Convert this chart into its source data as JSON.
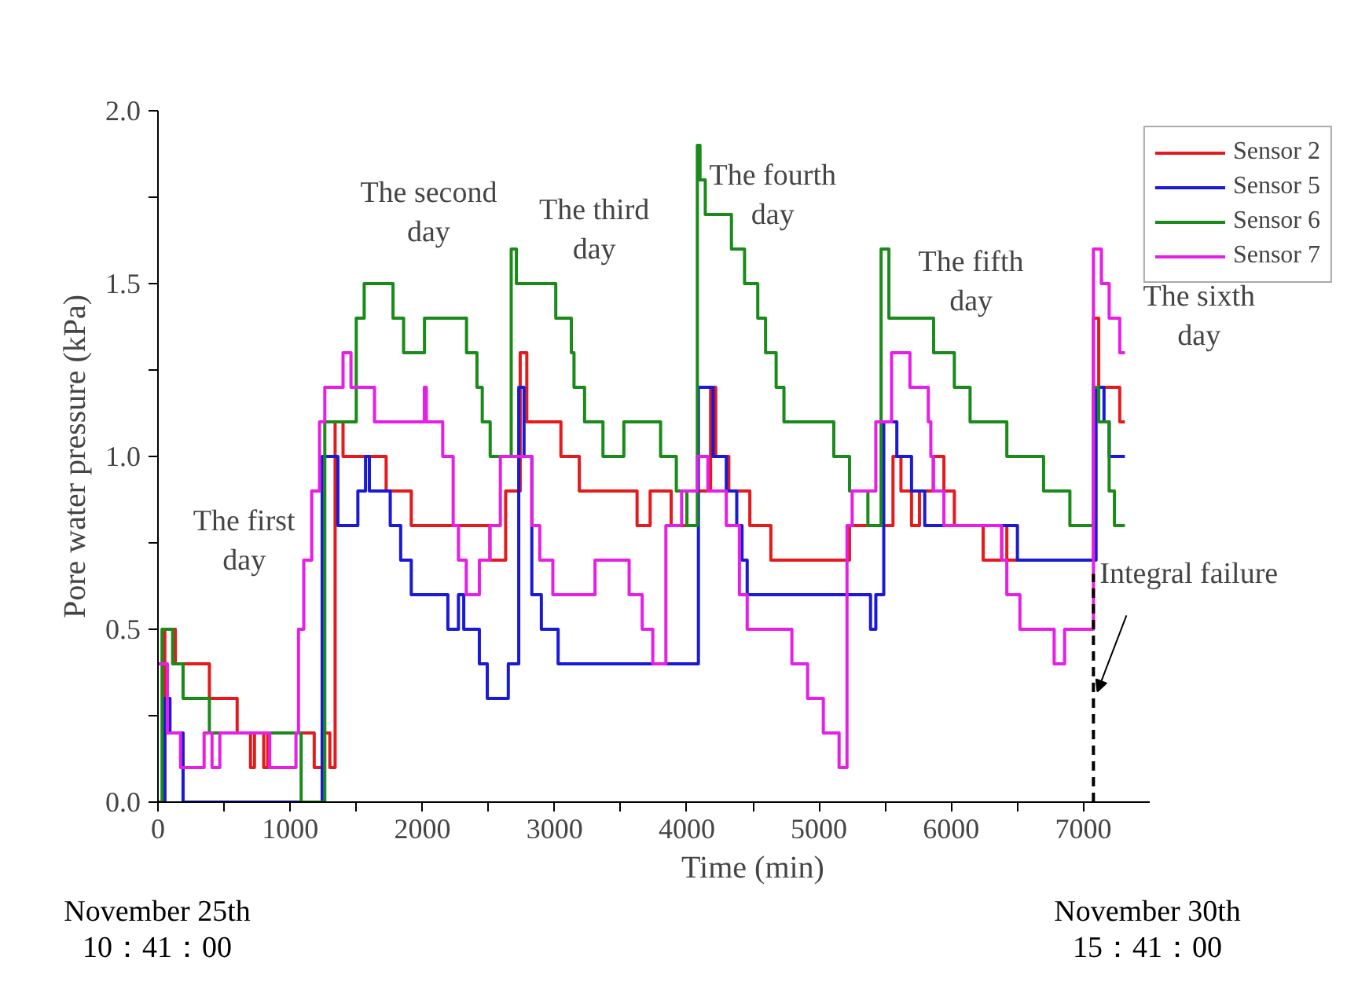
{
  "chart_data": {
    "type": "step",
    "xlabel": "Time (min)",
    "ylabel": "Pore water pressure (kPa)",
    "xlim": [
      0,
      7500
    ],
    "ylim": [
      0,
      2.0
    ],
    "xticks": [
      0,
      {
        "value": 500,
        "label": null
      },
      1000,
      {
        "value": 1500,
        "label": null
      },
      2000,
      {
        "value": 2500,
        "label": null
      },
      3000,
      {
        "value": 3500,
        "label": null
      },
      4000,
      {
        "value": 4500,
        "label": null
      },
      5000,
      {
        "value": 5500,
        "label": null
      },
      6000,
      {
        "value": 6500,
        "label": null
      },
      7000
    ],
    "yticks": [
      {
        "value": 0,
        "label": "0.0"
      },
      {
        "value": 0.25,
        "label": null
      },
      {
        "value": 0.5,
        "label": "0.5"
      },
      {
        "value": 0.75,
        "label": null
      },
      {
        "value": 1.0,
        "label": "1.0"
      },
      {
        "value": 1.25,
        "label": null
      },
      {
        "value": 1.5,
        "label": "1.5"
      },
      {
        "value": 1.75,
        "label": null
      },
      {
        "value": 2.0,
        "label": "2.0"
      }
    ],
    "grid": false,
    "legend": "top right",
    "series": [
      {
        "name": "Sensor 2",
        "color": "#e41a1c",
        "x": [
          0,
          52,
          131,
          389,
          599,
          700,
          730,
          800,
          830,
          1182,
          1242,
          1300,
          1340,
          1400,
          1726,
          1916,
          2511,
          2630,
          2740,
          2790,
          3048,
          3187,
          3624,
          3723,
          3882,
          4001,
          4180,
          4219,
          4318,
          4477,
          4636,
          5231,
          5560,
          5620,
          5700,
          5760,
          5865,
          5945,
          6024,
          6242,
          6382,
          6421,
          7076,
          7116,
          7275,
          7314
        ],
        "values": [
          0,
          0.5,
          0.4,
          0.3,
          0.2,
          0.1,
          0.2,
          0.1,
          0.2,
          0.1,
          0.2,
          0.1,
          1.1,
          1.0,
          0.9,
          0.8,
          0.7,
          0.9,
          1.3,
          1.1,
          1.0,
          0.9,
          0.8,
          0.9,
          0.8,
          0.9,
          1.2,
          1.0,
          0.9,
          0.8,
          0.7,
          0.8,
          1.0,
          0.9,
          0.8,
          0.9,
          1.0,
          0.9,
          0.8,
          0.7,
          0.8,
          0.7,
          1.4,
          1.2,
          1.1,
          1.1
        ]
      },
      {
        "name": "Sensor 5",
        "color": "#1a1ad6",
        "x": [
          0,
          52,
          91,
          190,
          1242,
          1361,
          1512,
          1570,
          1599,
          1757,
          1836,
          1916,
          2193,
          2273,
          2313,
          2431,
          2491,
          2650,
          2729,
          2769,
          2828,
          2900,
          3027,
          4088,
          4199,
          4299,
          4378,
          4418,
          4457,
          5390,
          5430,
          5490,
          5589,
          5700,
          5800,
          6501,
          7096,
          7156,
          7195,
          7314
        ],
        "values": [
          0,
          0.3,
          0.2,
          0,
          1.0,
          0.8,
          0.9,
          1.0,
          0.9,
          0.8,
          0.7,
          0.6,
          0.5,
          0.6,
          0.5,
          0.4,
          0.3,
          0.4,
          1.2,
          1.0,
          0.6,
          0.5,
          0.4,
          1.2,
          1.0,
          0.9,
          0.8,
          0.7,
          0.6,
          0.5,
          0.6,
          1.1,
          1.0,
          0.9,
          0.8,
          0.7,
          1.2,
          1.1,
          1.0,
          1.0
        ]
      },
      {
        "name": "Sensor 6",
        "color": "#1a8a1a",
        "x": [
          0,
          31,
          111,
          190,
          389,
          1083,
          1262,
          1500,
          1560,
          1778,
          1858,
          2016,
          2334,
          2413,
          2453,
          2513,
          2672,
          2711,
          3009,
          3127,
          3147,
          3227,
          3366,
          3524,
          3802,
          3921,
          4001,
          4080,
          4100,
          4140,
          4338,
          4437,
          4537,
          4596,
          4676,
          4735,
          5112,
          5231,
          5370,
          5470,
          5529,
          5867,
          6024,
          6143,
          6421,
          6699,
          6898,
          7076,
          7116,
          7195,
          7235,
          7314
        ],
        "values": [
          0,
          0.5,
          0.4,
          0.3,
          0.2,
          0,
          1.1,
          1.4,
          1.5,
          1.4,
          1.3,
          1.4,
          1.3,
          1.2,
          1.1,
          1.0,
          1.6,
          1.5,
          1.4,
          1.3,
          1.2,
          1.1,
          1.0,
          1.1,
          1.0,
          0.9,
          0.8,
          1.9,
          1.8,
          1.7,
          1.6,
          1.5,
          1.4,
          1.3,
          1.2,
          1.1,
          1.0,
          0.9,
          0.8,
          1.6,
          1.4,
          1.3,
          1.2,
          1.1,
          1.0,
          0.9,
          0.8,
          1.2,
          1.1,
          0.9,
          0.8,
          0.8
        ]
      },
      {
        "name": "Sensor 7",
        "color": "#e61ee6",
        "x": [
          0,
          71,
          171,
          349,
          409,
          468,
          845,
          1044,
          1063,
          1103,
          1163,
          1222,
          1262,
          1400,
          1460,
          1638,
          2015,
          2030,
          2154,
          2233,
          2273,
          2332,
          2431,
          2511,
          2590,
          2828,
          2888,
          2987,
          3306,
          3564,
          3663,
          3743,
          3842,
          3961,
          4080,
          4160,
          4299,
          4398,
          4457,
          4795,
          4914,
          5033,
          5152,
          5212,
          5251,
          5430,
          5549,
          5688,
          5827,
          5846,
          5865,
          5945,
          6382,
          6421,
          6520,
          6779,
          6858,
          7076,
          7136,
          7195,
          7275,
          7314
        ],
        "values": [
          0.4,
          0.2,
          0.1,
          0.2,
          0.1,
          0.2,
          0.1,
          0.2,
          0.5,
          0.7,
          0.9,
          1.1,
          1.2,
          1.3,
          1.2,
          1.1,
          1.2,
          1.1,
          1.0,
          0.8,
          0.7,
          0.6,
          0.7,
          0.8,
          1.0,
          0.8,
          0.7,
          0.6,
          0.7,
          0.6,
          0.5,
          0.4,
          0.8,
          0.9,
          1.0,
          0.9,
          0.8,
          0.6,
          0.5,
          0.4,
          0.3,
          0.2,
          0.1,
          0.8,
          0.9,
          1.1,
          1.3,
          1.2,
          1.1,
          1.0,
          0.9,
          0.8,
          0.7,
          0.6,
          0.5,
          0.4,
          0.5,
          1.6,
          1.5,
          1.4,
          1.3,
          1.3
        ]
      }
    ],
    "ref_lines": [
      {
        "axis": "x",
        "value": 7076,
        "label": "Integral failure",
        "line_style": "dashed",
        "color": "#000000"
      }
    ],
    "annotations": [
      "The first\nday",
      "The second\nday",
      "The third\nday",
      "The fourth\nday",
      "The fifth\nday",
      "The sixth\nday",
      "November 25th\n10：41：00",
      "November 30th\n15：41：00"
    ]
  }
}
